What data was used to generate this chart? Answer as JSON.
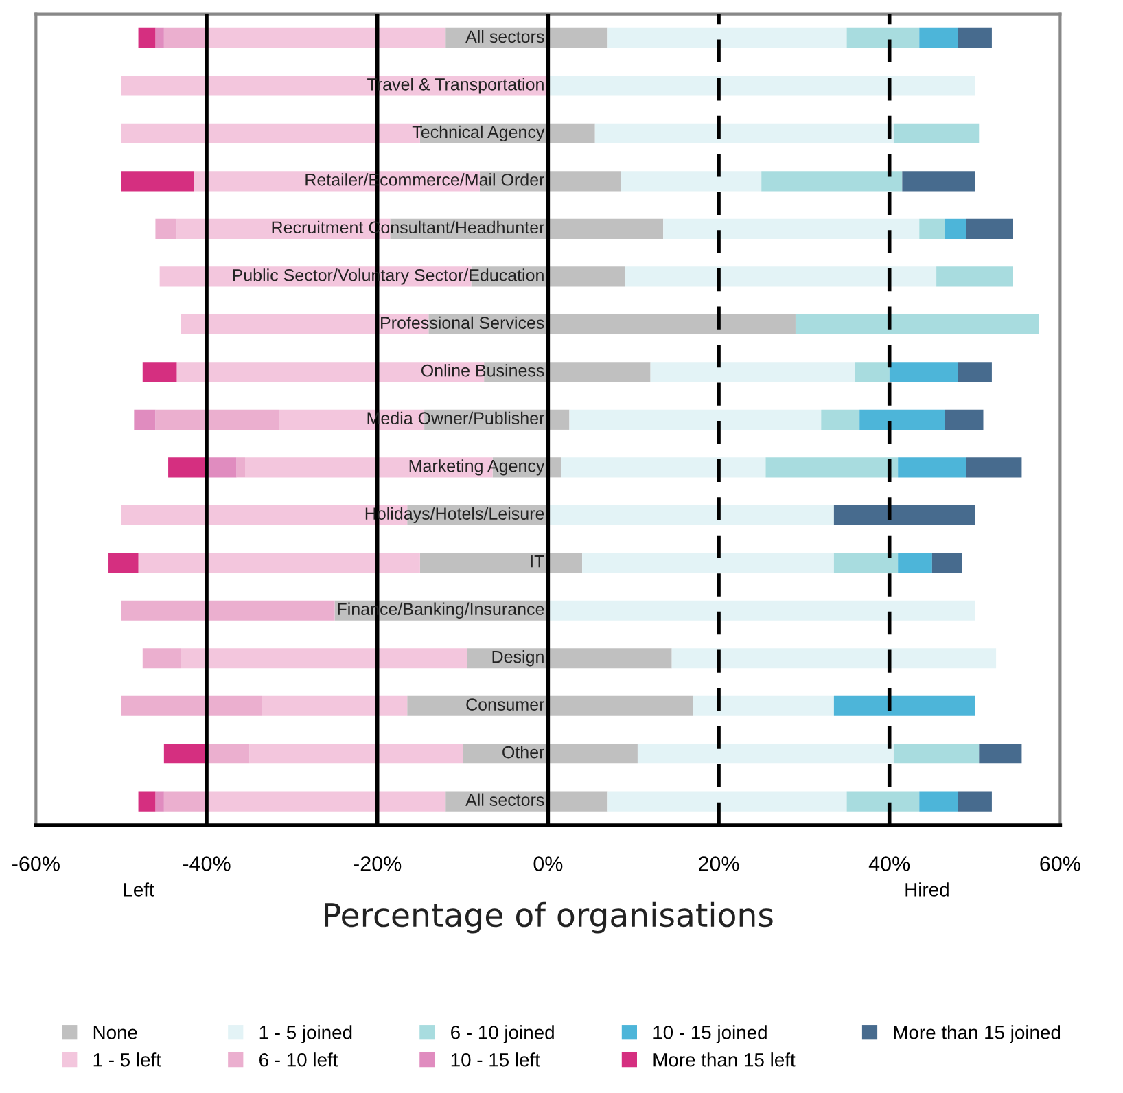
{
  "chart_data": {
    "type": "bar",
    "orientation": "horizontal",
    "stacked": true,
    "categories": [
      "All sectors",
      "Travel & Transportation",
      "Technical Agency",
      "Retailer/Ecommerce/Mail Order",
      "Recruitment Consultant/Headhunter",
      "Public Sector/Voluntary Sector/Education",
      "Professional Services",
      "Online Business",
      "Media Owner/Publisher",
      "Marketing Agency",
      "Holidays/Hotels/Leisure",
      "IT",
      "Finance/Banking/Insurance",
      "Design",
      "Consumer",
      "Other",
      "All sectors"
    ],
    "series": [
      {
        "name": "None",
        "color": "#c0c0c0",
        "values": [
          7,
          0,
          5.5,
          8.5,
          13.5,
          9,
          29,
          12,
          2.5,
          1.5,
          0,
          4,
          0,
          14.5,
          17,
          10.5,
          7
        ]
      },
      {
        "color": "#c0c0c0",
        "values": [
          -12,
          0,
          -15,
          -8,
          -18.5,
          -9,
          -14,
          -7.5,
          -14.5,
          -6.5,
          -16.5,
          -15,
          -25,
          -9.5,
          -16.5,
          -10,
          -12
        ]
      },
      {
        "name": "1 - 5 left",
        "color": "#f3c6dd",
        "values": [
          -28,
          -50,
          -35,
          -33.5,
          -25,
          -36.5,
          -29,
          -36,
          -17,
          -29,
          -33.5,
          -33,
          0,
          -33.5,
          -17,
          -25,
          -28
        ]
      },
      {
        "name": "1 - 5 joined",
        "color": "#e3f3f6",
        "values": [
          28,
          50,
          35,
          16.5,
          30,
          36.5,
          0,
          24,
          29.5,
          24,
          33.5,
          29.5,
          50,
          38,
          16.5,
          30,
          28
        ]
      },
      {
        "name": "6 - 10 left",
        "color": "#ebafcf",
        "values": [
          -5,
          0,
          0,
          0,
          -2.5,
          0,
          0,
          0,
          -14.5,
          -1,
          0,
          0,
          -25,
          -4.5,
          -16.5,
          -5,
          -5
        ]
      },
      {
        "name": "6 - 10 joined",
        "color": "#a8dcdf",
        "values": [
          8.5,
          0,
          10,
          16.5,
          3,
          9,
          28.5,
          4,
          4.5,
          15.5,
          0,
          7.5,
          0,
          0,
          0,
          10,
          8.5
        ]
      },
      {
        "name": "10 - 15 left",
        "color": "#e08cbf",
        "values": [
          -1,
          0,
          0,
          0,
          0,
          0,
          0,
          0,
          -2.5,
          -3.5,
          0,
          0,
          0,
          0,
          0,
          0,
          -1
        ]
      },
      {
        "name": "10 - 15 joined",
        "color": "#4db5d9",
        "values": [
          4.5,
          0,
          0,
          0,
          2.5,
          0,
          0,
          8,
          10,
          8,
          0,
          4,
          0,
          0,
          16.5,
          0,
          4.5
        ]
      },
      {
        "name": "More than 15 left",
        "color": "#d52f80",
        "values": [
          -2,
          0,
          0,
          -8.5,
          0,
          0,
          0,
          -4,
          0,
          -4.5,
          0,
          -3.5,
          0,
          0,
          0,
          -5,
          -2
        ]
      },
      {
        "name": "More than 15 joined",
        "color": "#476b8e",
        "values": [
          4,
          0,
          0,
          8.5,
          5.5,
          0,
          0,
          4,
          4.5,
          6.5,
          16.5,
          3.5,
          0,
          0,
          0,
          5,
          4
        ]
      }
    ],
    "xlim": [
      -60,
      60
    ],
    "xticks": [
      {
        "value": -60,
        "label": "-60%"
      },
      {
        "value": -40,
        "label": "-40%"
      },
      {
        "value": -20,
        "label": "-20%"
      },
      {
        "value": 0,
        "label": "0%"
      },
      {
        "value": 20,
        "label": "20%"
      },
      {
        "value": 40,
        "label": "40%"
      },
      {
        "value": 60,
        "label": "60%"
      }
    ],
    "xlabel": "Percentage of organisations",
    "annotations": [
      "Left",
      "Hired"
    ],
    "grid": "x",
    "legend": "bottom"
  }
}
